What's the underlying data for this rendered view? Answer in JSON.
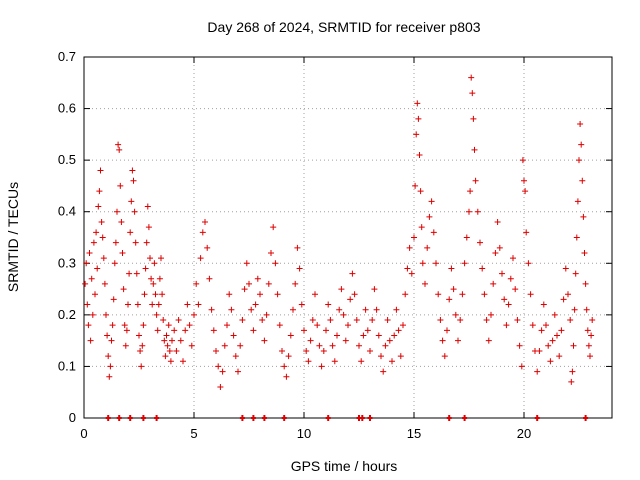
{
  "chart_data": {
    "type": "scatter",
    "title": "Day 268 of 2024, SRMTID for receiver p803",
    "xlabel": "GPS time / hours",
    "ylabel": "SRMTID / TECUs",
    "xlim": [
      0,
      24
    ],
    "ylim": [
      0,
      0.7
    ],
    "x_ticks": [
      0,
      5,
      10,
      15,
      20
    ],
    "x_tick_labels": [
      "0",
      "5",
      "10",
      "15",
      "20"
    ],
    "y_ticks": [
      0,
      0.1,
      0.2,
      0.3,
      0.4,
      0.5,
      0.6,
      0.7
    ],
    "y_tick_labels": [
      "0",
      "0.1",
      "0.2",
      "0.3",
      "0.4",
      "0.5",
      "0.6",
      "0.7"
    ],
    "grid": true,
    "marker": "plus",
    "color": "#dd0000",
    "series": [
      {
        "name": "SRMTID",
        "points": [
          [
            0.05,
            0.26
          ],
          [
            0.1,
            0.3
          ],
          [
            0.15,
            0.22
          ],
          [
            0.2,
            0.18
          ],
          [
            0.25,
            0.32
          ],
          [
            0.3,
            0.15
          ],
          [
            0.35,
            0.27
          ],
          [
            0.4,
            0.2
          ],
          [
            0.45,
            0.34
          ],
          [
            0.5,
            0.24
          ],
          [
            0.55,
            0.36
          ],
          [
            0.6,
            0.29
          ],
          [
            0.65,
            0.41
          ],
          [
            0.7,
            0.44
          ],
          [
            0.75,
            0.48
          ],
          [
            0.8,
            0.38
          ],
          [
            0.85,
            0.35
          ],
          [
            0.9,
            0.31
          ],
          [
            0.95,
            0.26
          ],
          [
            1.0,
            0.2
          ],
          [
            1.05,
            0.16
          ],
          [
            1.1,
            0.12
          ],
          [
            1.15,
            0.08
          ],
          [
            1.2,
            0.1
          ],
          [
            1.25,
            0.15
          ],
          [
            1.3,
            0.18
          ],
          [
            1.35,
            0.23
          ],
          [
            1.4,
            0.3
          ],
          [
            1.45,
            0.34
          ],
          [
            1.5,
            0.4
          ],
          [
            1.55,
            0.53
          ],
          [
            1.6,
            0.52
          ],
          [
            1.65,
            0.45
          ],
          [
            1.7,
            0.38
          ],
          [
            1.75,
            0.32
          ],
          [
            1.8,
            0.25
          ],
          [
            1.85,
            0.18
          ],
          [
            1.9,
            0.14
          ],
          [
            1.95,
            0.17
          ],
          [
            2.0,
            0.22
          ],
          [
            2.05,
            0.28
          ],
          [
            2.1,
            0.36
          ],
          [
            2.15,
            0.42
          ],
          [
            2.2,
            0.48
          ],
          [
            2.25,
            0.46
          ],
          [
            2.3,
            0.4
          ],
          [
            2.35,
            0.34
          ],
          [
            2.4,
            0.28
          ],
          [
            2.45,
            0.22
          ],
          [
            2.5,
            0.16
          ],
          [
            2.55,
            0.13
          ],
          [
            2.6,
            0.1
          ],
          [
            2.65,
            0.14
          ],
          [
            2.7,
            0.18
          ],
          [
            2.75,
            0.24
          ],
          [
            2.8,
            0.29
          ],
          [
            2.85,
            0.34
          ],
          [
            2.9,
            0.41
          ],
          [
            2.95,
            0.37
          ],
          [
            3.0,
            0.31
          ],
          [
            3.05,
            0.27
          ],
          [
            3.1,
            0.22
          ],
          [
            3.15,
            0.26
          ],
          [
            3.2,
            0.3
          ],
          [
            3.25,
            0.24
          ],
          [
            3.3,
            0.2
          ],
          [
            3.35,
            0.17
          ],
          [
            3.4,
            0.22
          ],
          [
            3.45,
            0.27
          ],
          [
            3.5,
            0.31
          ],
          [
            3.55,
            0.24
          ],
          [
            3.6,
            0.19
          ],
          [
            3.65,
            0.15
          ],
          [
            3.7,
            0.12
          ],
          [
            3.75,
            0.16
          ],
          [
            3.8,
            0.14
          ],
          [
            3.85,
            0.18
          ],
          [
            3.9,
            0.13
          ],
          [
            3.95,
            0.11
          ],
          [
            4.0,
            0.15
          ],
          [
            4.1,
            0.17
          ],
          [
            4.2,
            0.13
          ],
          [
            4.3,
            0.19
          ],
          [
            4.4,
            0.15
          ],
          [
            4.5,
            0.11
          ],
          [
            4.6,
            0.17
          ],
          [
            4.7,
            0.22
          ],
          [
            4.8,
            0.18
          ],
          [
            4.9,
            0.14
          ],
          [
            5.0,
            0.2
          ],
          [
            5.1,
            0.26
          ],
          [
            5.2,
            0.22
          ],
          [
            5.3,
            0.31
          ],
          [
            5.4,
            0.36
          ],
          [
            5.5,
            0.38
          ],
          [
            5.6,
            0.33
          ],
          [
            5.7,
            0.27
          ],
          [
            5.8,
            0.21
          ],
          [
            5.9,
            0.17
          ],
          [
            6.0,
            0.13
          ],
          [
            6.1,
            0.1
          ],
          [
            6.2,
            0.06
          ],
          [
            6.3,
            0.09
          ],
          [
            6.4,
            0.14
          ],
          [
            6.5,
            0.18
          ],
          [
            6.6,
            0.24
          ],
          [
            6.7,
            0.21
          ],
          [
            6.8,
            0.16
          ],
          [
            6.9,
            0.12
          ],
          [
            7.0,
            0.09
          ],
          [
            7.1,
            0.14
          ],
          [
            7.2,
            0.19
          ],
          [
            7.3,
            0.25
          ],
          [
            7.4,
            0.3
          ],
          [
            7.5,
            0.26
          ],
          [
            7.6,
            0.21
          ],
          [
            7.7,
            0.17
          ],
          [
            7.8,
            0.22
          ],
          [
            7.9,
            0.27
          ],
          [
            8.0,
            0.24
          ],
          [
            8.1,
            0.19
          ],
          [
            8.2,
            0.15
          ],
          [
            8.3,
            0.2
          ],
          [
            8.4,
            0.26
          ],
          [
            8.5,
            0.32
          ],
          [
            8.6,
            0.37
          ],
          [
            8.7,
            0.3
          ],
          [
            8.8,
            0.24
          ],
          [
            8.9,
            0.18
          ],
          [
            9.0,
            0.13
          ],
          [
            9.1,
            0.1
          ],
          [
            9.2,
            0.08
          ],
          [
            9.3,
            0.12
          ],
          [
            9.4,
            0.16
          ],
          [
            9.5,
            0.21
          ],
          [
            9.6,
            0.26
          ],
          [
            9.7,
            0.33
          ],
          [
            9.8,
            0.29
          ],
          [
            9.9,
            0.22
          ],
          [
            10.0,
            0.17
          ],
          [
            10.1,
            0.13
          ],
          [
            10.2,
            0.11
          ],
          [
            10.3,
            0.15
          ],
          [
            10.4,
            0.19
          ],
          [
            10.5,
            0.24
          ],
          [
            10.6,
            0.18
          ],
          [
            10.7,
            0.14
          ],
          [
            10.8,
            0.1
          ],
          [
            10.9,
            0.13
          ],
          [
            11.0,
            0.17
          ],
          [
            11.1,
            0.22
          ],
          [
            11.2,
            0.19
          ],
          [
            11.3,
            0.14
          ],
          [
            11.4,
            0.11
          ],
          [
            11.5,
            0.16
          ],
          [
            11.6,
            0.21
          ],
          [
            11.7,
            0.25
          ],
          [
            11.8,
            0.2
          ],
          [
            11.9,
            0.15
          ],
          [
            12.0,
            0.18
          ],
          [
            12.1,
            0.23
          ],
          [
            12.2,
            0.28
          ],
          [
            12.3,
            0.24
          ],
          [
            12.4,
            0.19
          ],
          [
            12.5,
            0.14
          ],
          [
            12.6,
            0.11
          ],
          [
            12.7,
            0.16
          ],
          [
            12.8,
            0.21
          ],
          [
            12.9,
            0.17
          ],
          [
            13.0,
            0.13
          ],
          [
            13.1,
            0.19
          ],
          [
            13.2,
            0.25
          ],
          [
            13.3,
            0.21
          ],
          [
            13.4,
            0.16
          ],
          [
            13.5,
            0.12
          ],
          [
            13.6,
            0.09
          ],
          [
            13.7,
            0.14
          ],
          [
            13.8,
            0.19
          ],
          [
            13.9,
            0.15
          ],
          [
            14.0,
            0.11
          ],
          [
            14.1,
            0.16
          ],
          [
            14.2,
            0.21
          ],
          [
            14.3,
            0.17
          ],
          [
            14.4,
            0.12
          ],
          [
            14.5,
            0.18
          ],
          [
            14.6,
            0.24
          ],
          [
            14.7,
            0.29
          ],
          [
            14.8,
            0.33
          ],
          [
            14.9,
            0.28
          ],
          [
            15.0,
            0.35
          ],
          [
            15.05,
            0.45
          ],
          [
            15.1,
            0.55
          ],
          [
            15.15,
            0.61
          ],
          [
            15.2,
            0.58
          ],
          [
            15.25,
            0.51
          ],
          [
            15.3,
            0.44
          ],
          [
            15.35,
            0.37
          ],
          [
            15.4,
            0.3
          ],
          [
            15.5,
            0.26
          ],
          [
            15.6,
            0.33
          ],
          [
            15.7,
            0.39
          ],
          [
            15.8,
            0.42
          ],
          [
            15.9,
            0.36
          ],
          [
            16.0,
            0.3
          ],
          [
            16.1,
            0.24
          ],
          [
            16.2,
            0.19
          ],
          [
            16.3,
            0.15
          ],
          [
            16.4,
            0.12
          ],
          [
            16.5,
            0.17
          ],
          [
            16.6,
            0.23
          ],
          [
            16.7,
            0.29
          ],
          [
            16.8,
            0.25
          ],
          [
            16.9,
            0.2
          ],
          [
            17.0,
            0.15
          ],
          [
            17.1,
            0.19
          ],
          [
            17.2,
            0.24
          ],
          [
            17.3,
            0.3
          ],
          [
            17.4,
            0.35
          ],
          [
            17.5,
            0.4
          ],
          [
            17.55,
            0.44
          ],
          [
            17.6,
            0.66
          ],
          [
            17.65,
            0.63
          ],
          [
            17.7,
            0.58
          ],
          [
            17.75,
            0.52
          ],
          [
            17.8,
            0.46
          ],
          [
            17.9,
            0.4
          ],
          [
            18.0,
            0.34
          ],
          [
            18.1,
            0.29
          ],
          [
            18.2,
            0.24
          ],
          [
            18.3,
            0.19
          ],
          [
            18.4,
            0.15
          ],
          [
            18.5,
            0.2
          ],
          [
            18.6,
            0.26
          ],
          [
            18.7,
            0.32
          ],
          [
            18.8,
            0.38
          ],
          [
            18.9,
            0.33
          ],
          [
            19.0,
            0.28
          ],
          [
            19.1,
            0.23
          ],
          [
            19.2,
            0.18
          ],
          [
            19.3,
            0.22
          ],
          [
            19.4,
            0.27
          ],
          [
            19.5,
            0.31
          ],
          [
            19.6,
            0.25
          ],
          [
            19.7,
            0.19
          ],
          [
            19.8,
            0.14
          ],
          [
            19.9,
            0.1
          ],
          [
            19.95,
            0.5
          ],
          [
            20.0,
            0.46
          ],
          [
            20.05,
            0.44
          ],
          [
            20.1,
            0.36
          ],
          [
            20.2,
            0.3
          ],
          [
            20.3,
            0.24
          ],
          [
            20.4,
            0.18
          ],
          [
            20.5,
            0.13
          ],
          [
            20.6,
            0.09
          ],
          [
            20.7,
            0.13
          ],
          [
            20.8,
            0.17
          ],
          [
            20.9,
            0.22
          ],
          [
            21.0,
            0.18
          ],
          [
            21.1,
            0.14
          ],
          [
            21.2,
            0.11
          ],
          [
            21.3,
            0.15
          ],
          [
            21.4,
            0.2
          ],
          [
            21.5,
            0.16
          ],
          [
            21.6,
            0.12
          ],
          [
            21.7,
            0.17
          ],
          [
            21.8,
            0.23
          ],
          [
            21.9,
            0.29
          ],
          [
            22.0,
            0.24
          ],
          [
            22.1,
            0.19
          ],
          [
            22.15,
            0.07
          ],
          [
            22.2,
            0.09
          ],
          [
            22.25,
            0.14
          ],
          [
            22.3,
            0.21
          ],
          [
            22.35,
            0.28
          ],
          [
            22.4,
            0.35
          ],
          [
            22.45,
            0.42
          ],
          [
            22.5,
            0.5
          ],
          [
            22.55,
            0.57
          ],
          [
            22.6,
            0.53
          ],
          [
            22.65,
            0.46
          ],
          [
            22.7,
            0.39
          ],
          [
            22.75,
            0.32
          ],
          [
            22.8,
            0.26
          ],
          [
            22.85,
            0.21
          ],
          [
            22.9,
            0.17
          ],
          [
            22.95,
            0.14
          ],
          [
            23.0,
            0.12
          ],
          [
            23.05,
            0.16
          ],
          [
            23.1,
            0.19
          ]
        ]
      }
    ],
    "zero_markers": [
      1.1,
      1.6,
      2.1,
      2.7,
      3.3,
      7.2,
      7.7,
      8.2,
      9.1,
      11.1,
      12.5,
      12.65,
      13.0,
      16.6,
      17.3,
      20.6,
      22.8
    ]
  }
}
